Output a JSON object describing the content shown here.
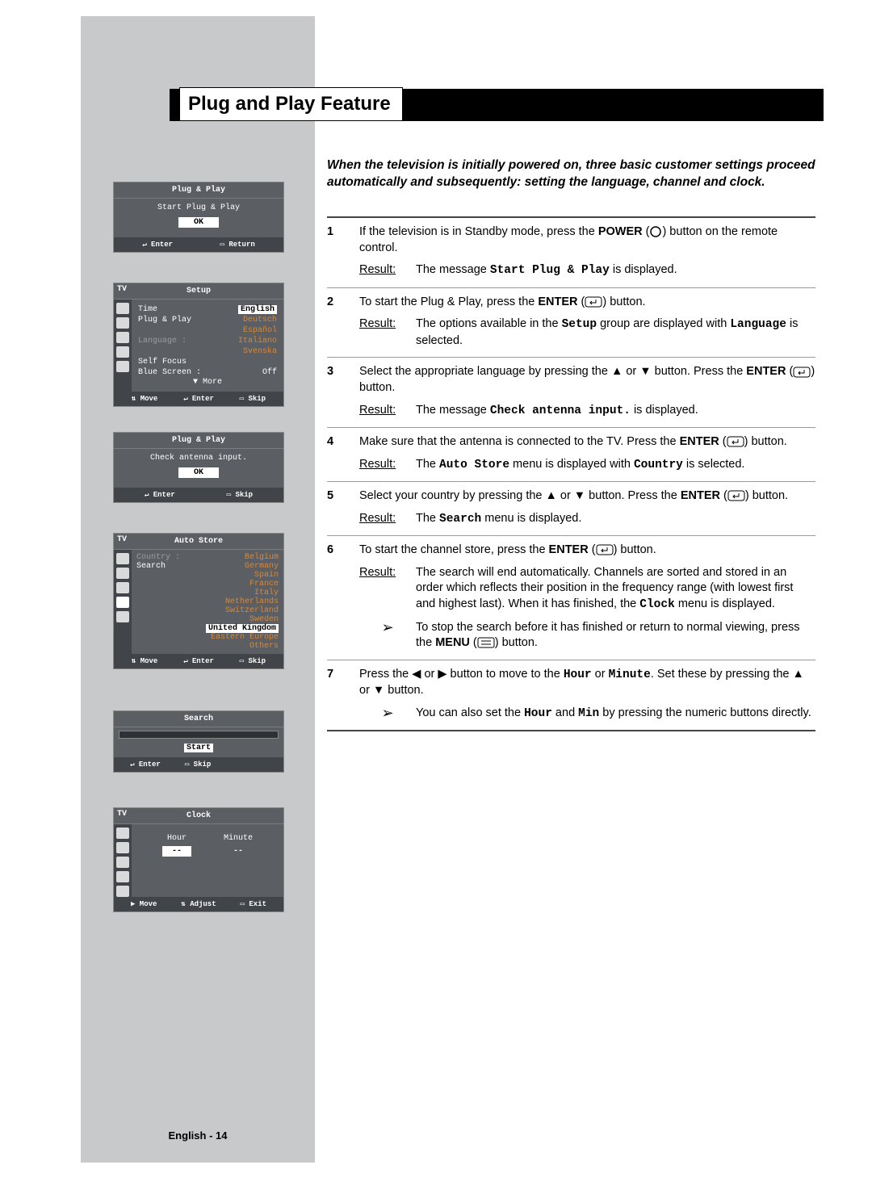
{
  "title": "Plug and Play Feature",
  "intro": "When the television is initially powered on, three basic customer settings proceed automatically and subsequently: setting the language, channel and clock.",
  "footer": "English - 14",
  "steps": [
    {
      "num": "1",
      "text_pre": "If the television is in Standby mode, press the ",
      "bold1": "POWER",
      "icon1": "power",
      "text_post": " button on the remote control.",
      "result": "The message ",
      "result_mono": "Start Plug & Play",
      "result_post": " is displayed."
    },
    {
      "num": "2",
      "text_pre": "To start the Plug & Play, press the ",
      "bold1": "ENTER",
      "icon1": "enter",
      "text_post": " button.",
      "result": "The options available in the ",
      "result_mono": "Setup",
      "result_mid": " group are displayed with ",
      "result_mono2": "Language",
      "result_post": " is selected."
    },
    {
      "num": "3",
      "text_pre": "Select the appropriate language by pressing the ▲ or ▼ button. Press the ",
      "bold1": "ENTER",
      "icon1": "enter",
      "text_post": " button.",
      "result": "The message ",
      "result_mono": "Check antenna input.",
      "result_post": " is displayed."
    },
    {
      "num": "4",
      "text_pre": "Make sure that the antenna is connected to the TV. Press the ",
      "bold1": "ENTER",
      "icon1": "enter",
      "text_post": " button.",
      "result": "The ",
      "result_mono": "Auto Store",
      "result_mid": " menu is displayed with ",
      "result_mono2": "Country",
      "result_post": " is selected."
    },
    {
      "num": "5",
      "text_pre": "Select your country by pressing the ▲ or ▼ button. Press the ",
      "bold1": "ENTER",
      "icon1": "enter",
      "text_post": " button.",
      "result": "The ",
      "result_mono": "Search",
      "result_post": " menu is displayed."
    },
    {
      "num": "6",
      "text_pre": "To start the channel store, press the ",
      "bold1": "ENTER",
      "icon1": "enter",
      "text_post": " button.",
      "result": "The search will end automatically. Channels are sorted and stored in an order which reflects their position in the frequency range (with lowest first and highest last). When it has finished, the ",
      "result_mono": "Clock",
      "result_post": " menu is displayed.",
      "pointer": "To stop the search before it has finished or return to normal viewing, press the ",
      "pointer_bold": "MENU",
      "pointer_icon": "menu",
      "pointer_post": " button."
    },
    {
      "num": "7",
      "text_pre": "Press the ◀ or ▶ button to move to the ",
      "mono1": "Hour",
      "text_mid": " or ",
      "mono2": "Minute",
      "text_post2": ". Set these by pressing the ▲ or ▼ button.",
      "pointer": "You can also set the ",
      "pointer_mono1": "Hour",
      "pointer_mid": " and ",
      "pointer_mono2": "Min",
      "pointer_post": " by pressing the numeric buttons directly."
    }
  ],
  "osd1": {
    "title": "Plug & Play",
    "line": "Start Plug & Play",
    "ok": "OK",
    "f1": "Enter",
    "f2": "Return"
  },
  "osd2": {
    "tv": "TV",
    "title": "Setup",
    "rows": [
      {
        "l": "Time",
        "r": "English",
        "rcls": "hl-white"
      },
      {
        "l": "Plug & Play",
        "r": "Deutsch",
        "rcls": "orange"
      },
      {
        "l": "",
        "r": "Español",
        "rcls": "orange"
      },
      {
        "l": "Language",
        "r": "Italiano",
        "rcls": "orange",
        "lcls": "dim",
        "sep": ":"
      },
      {
        "l": "",
        "r": "Svenska",
        "rcls": "orange"
      },
      {
        "l": "Self Focus",
        "r": ""
      },
      {
        "l": "Blue Screen",
        "r": "Off",
        "sep": ":"
      },
      {
        "l": "▼ More",
        "r": "",
        "center": true
      }
    ],
    "f1": "Move",
    "f2": "Enter",
    "f3": "Skip"
  },
  "osd3": {
    "title": "Plug & Play",
    "line": "Check antenna input.",
    "ok": "OK",
    "f1": "Enter",
    "f2": "Skip"
  },
  "osd4": {
    "tv": "TV",
    "title": "Auto Store",
    "left": [
      {
        "t": "Country",
        "cls": "dim",
        "sep": ":"
      },
      {
        "t": "Search",
        "cls": ""
      }
    ],
    "right": [
      "Belgium",
      "Germany",
      "Spain",
      "France",
      "Italy",
      "Netherlands",
      "Switzerland",
      "Sweden",
      "United Kingdom",
      "Eastern Europe",
      "Others"
    ],
    "hl": "United Kingdom",
    "f1": "Move",
    "f2": "Enter",
    "f3": "Skip"
  },
  "osd5": {
    "title": "Search",
    "start": "Start",
    "f1": "Enter",
    "f2": "Skip"
  },
  "osd6": {
    "tv": "TV",
    "title": "Clock",
    "c1": "Hour",
    "c2": "Minute",
    "v1": "--",
    "v2": "--",
    "f1": "Move",
    "f2": "Adjust",
    "f3": "Exit"
  },
  "result_label": "Result:",
  "icons": {
    "enter": "↵",
    "menu": "▭",
    "power": "◯",
    "updown": "⇅",
    "right": "▶"
  }
}
